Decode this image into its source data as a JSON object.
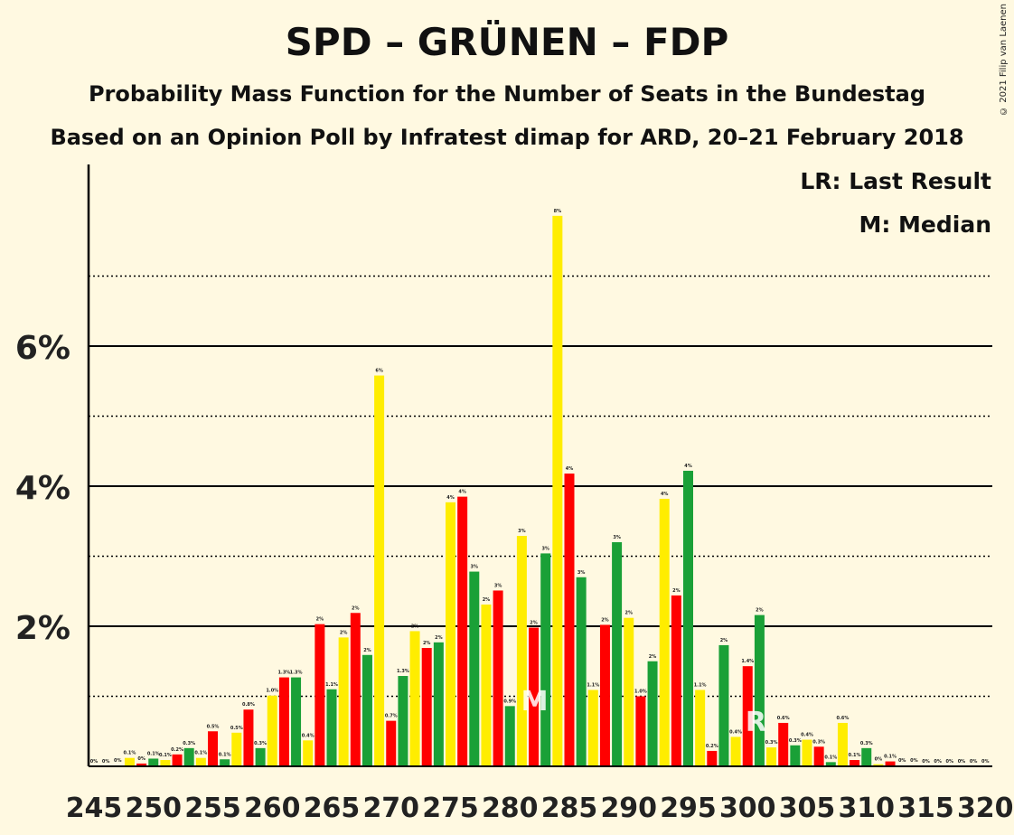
{
  "title": "SPD – GRÜNEN – FDP",
  "subtitle1": "Probability Mass Function for the Number of Seats in the Bundestag",
  "subtitle2": "Based on an Opinion Poll by Infratest dimap for ARD, 20–21 February 2018",
  "copyright": "© 2021 Filip van Laenen",
  "colors": {
    "yellow": "#FFED00",
    "red": "#FF0000",
    "green": "#1AA037",
    "background": "#FFF9E1",
    "axis": "#000000"
  },
  "chart_data": {
    "type": "bar",
    "title": "SPD – GRÜNEN – FDP",
    "legend": [
      "LR: Last Result",
      "M: Median"
    ],
    "legend_placement": "top-right",
    "ylim": [
      0,
      8.5
    ],
    "y_ticks": [
      2,
      4,
      6
    ],
    "y_tick_labels": [
      "2%",
      "4%",
      "6%"
    ],
    "y_dotted_lines": [
      1,
      3,
      5,
      7
    ],
    "x_tick_labels": [
      "245",
      "250",
      "255",
      "260",
      "265",
      "270",
      "275",
      "280",
      "285",
      "290",
      "295",
      "300",
      "305",
      "310",
      "315",
      "320"
    ],
    "median": 282,
    "last_result": 301,
    "median_marker": "M",
    "last_result_marker": "R",
    "bars": [
      {
        "x": 245,
        "value": 0.0,
        "label": "0%",
        "color": "red"
      },
      {
        "x": 246,
        "value": 0.0,
        "label": "0%",
        "color": "green"
      },
      {
        "x": 247,
        "value": 0.01,
        "label": "0%",
        "color": "yellow"
      },
      {
        "x": 248,
        "value": 0.12,
        "label": "0.1%",
        "color": "yellow"
      },
      {
        "x": 249,
        "value": 0.04,
        "label": "0%",
        "color": "red"
      },
      {
        "x": 250,
        "value": 0.11,
        "label": "0.1%",
        "color": "green"
      },
      {
        "x": 251,
        "value": 0.09,
        "label": "0.1%",
        "color": "yellow"
      },
      {
        "x": 252,
        "value": 0.17,
        "label": "0.2%",
        "color": "red"
      },
      {
        "x": 253,
        "value": 0.26,
        "label": "0.3%",
        "color": "green"
      },
      {
        "x": 254,
        "value": 0.12,
        "label": "0.1%",
        "color": "yellow"
      },
      {
        "x": 255,
        "value": 0.5,
        "label": "0.5%",
        "color": "red"
      },
      {
        "x": 256,
        "value": 0.1,
        "label": "0.1%",
        "color": "green"
      },
      {
        "x": 257,
        "value": 0.48,
        "label": "0.5%",
        "color": "yellow"
      },
      {
        "x": 258,
        "value": 0.81,
        "label": "0.8%",
        "color": "red"
      },
      {
        "x": 259,
        "value": 0.26,
        "label": "0.3%",
        "color": "green"
      },
      {
        "x": 260,
        "value": 1.01,
        "label": "1.0%",
        "color": "yellow"
      },
      {
        "x": 261,
        "value": 1.27,
        "label": "1.3%",
        "color": "red"
      },
      {
        "x": 262,
        "value": 1.27,
        "label": "1.3%",
        "color": "green"
      },
      {
        "x": 263,
        "value": 0.37,
        "label": "0.4%",
        "color": "yellow"
      },
      {
        "x": 264,
        "value": 2.03,
        "label": "2%",
        "color": "red"
      },
      {
        "x": 265,
        "value": 1.1,
        "label": "1.1%",
        "color": "green"
      },
      {
        "x": 266,
        "value": 1.84,
        "label": "2%",
        "color": "yellow"
      },
      {
        "x": 267,
        "value": 2.19,
        "label": "2%",
        "color": "red"
      },
      {
        "x": 268,
        "value": 1.59,
        "label": "2%",
        "color": "green"
      },
      {
        "x": 269,
        "value": 5.58,
        "label": "6%",
        "color": "yellow"
      },
      {
        "x": 270,
        "value": 0.65,
        "label": "0.7%",
        "color": "red"
      },
      {
        "x": 271,
        "value": 1.29,
        "label": "1.3%",
        "color": "green"
      },
      {
        "x": 272,
        "value": 1.93,
        "label": "2%",
        "color": "yellow"
      },
      {
        "x": 273,
        "value": 1.69,
        "label": "2%",
        "color": "red"
      },
      {
        "x": 274,
        "value": 1.77,
        "label": "2%",
        "color": "green"
      },
      {
        "x": 275,
        "value": 3.77,
        "label": "4%",
        "color": "yellow"
      },
      {
        "x": 276,
        "value": 3.85,
        "label": "4%",
        "color": "red"
      },
      {
        "x": 277,
        "value": 2.78,
        "label": "3%",
        "color": "green"
      },
      {
        "x": 278,
        "value": 2.31,
        "label": "2%",
        "color": "yellow"
      },
      {
        "x": 279,
        "value": 2.51,
        "label": "3%",
        "color": "red"
      },
      {
        "x": 280,
        "value": 0.86,
        "label": "0.9%",
        "color": "green"
      },
      {
        "x": 281,
        "value": 3.29,
        "label": "3%",
        "color": "yellow"
      },
      {
        "x": 282,
        "value": 1.98,
        "label": "2%",
        "color": "red"
      },
      {
        "x": 283,
        "value": 3.04,
        "label": "3%",
        "color": "green"
      },
      {
        "x": 284,
        "value": 7.86,
        "label": "8%",
        "color": "yellow"
      },
      {
        "x": 285,
        "value": 4.18,
        "label": "4%",
        "color": "red"
      },
      {
        "x": 286,
        "value": 2.7,
        "label": "3%",
        "color": "green"
      },
      {
        "x": 287,
        "value": 1.09,
        "label": "1.1%",
        "color": "yellow"
      },
      {
        "x": 288,
        "value": 2.02,
        "label": "2%",
        "color": "red"
      },
      {
        "x": 289,
        "value": 3.2,
        "label": "3%",
        "color": "green"
      },
      {
        "x": 290,
        "value": 2.12,
        "label": "2%",
        "color": "yellow"
      },
      {
        "x": 291,
        "value": 1.0,
        "label": "1.0%",
        "color": "red"
      },
      {
        "x": 292,
        "value": 1.5,
        "label": "2%",
        "color": "green"
      },
      {
        "x": 293,
        "value": 3.82,
        "label": "4%",
        "color": "yellow"
      },
      {
        "x": 294,
        "value": 2.44,
        "label": "2%",
        "color": "red"
      },
      {
        "x": 295,
        "value": 4.22,
        "label": "4%",
        "color": "green"
      },
      {
        "x": 296,
        "value": 1.09,
        "label": "1.1%",
        "color": "yellow"
      },
      {
        "x": 297,
        "value": 0.22,
        "label": "0.2%",
        "color": "red"
      },
      {
        "x": 298,
        "value": 1.73,
        "label": "2%",
        "color": "green"
      },
      {
        "x": 299,
        "value": 0.42,
        "label": "0.4%",
        "color": "yellow"
      },
      {
        "x": 300,
        "value": 1.43,
        "label": "1.4%",
        "color": "red"
      },
      {
        "x": 301,
        "value": 2.16,
        "label": "2%",
        "color": "green"
      },
      {
        "x": 302,
        "value": 0.27,
        "label": "0.3%",
        "color": "yellow"
      },
      {
        "x": 303,
        "value": 0.62,
        "label": "0.6%",
        "color": "red"
      },
      {
        "x": 304,
        "value": 0.3,
        "label": "0.3%",
        "color": "green"
      },
      {
        "x": 305,
        "value": 0.38,
        "label": "0.4%",
        "color": "yellow"
      },
      {
        "x": 306,
        "value": 0.28,
        "label": "0.3%",
        "color": "red"
      },
      {
        "x": 307,
        "value": 0.06,
        "label": "0.1%",
        "color": "green"
      },
      {
        "x": 308,
        "value": 0.62,
        "label": "0.6%",
        "color": "yellow"
      },
      {
        "x": 309,
        "value": 0.09,
        "label": "0.1%",
        "color": "red"
      },
      {
        "x": 310,
        "value": 0.26,
        "label": "0.3%",
        "color": "green"
      },
      {
        "x": 311,
        "value": 0.03,
        "label": "0%",
        "color": "yellow"
      },
      {
        "x": 312,
        "value": 0.07,
        "label": "0.1%",
        "color": "red"
      },
      {
        "x": 313,
        "value": 0.01,
        "label": "0%",
        "color": "green"
      },
      {
        "x": 314,
        "value": 0.01,
        "label": "0%",
        "color": "yellow"
      },
      {
        "x": 315,
        "value": 0.0,
        "label": "0%",
        "color": "red"
      },
      {
        "x": 316,
        "value": 0.0,
        "label": "0%",
        "color": "green"
      },
      {
        "x": 317,
        "value": 0.0,
        "label": "0%",
        "color": "yellow"
      },
      {
        "x": 318,
        "value": 0.0,
        "label": "0%",
        "color": "red"
      },
      {
        "x": 319,
        "value": 0.0,
        "label": "0%",
        "color": "green"
      },
      {
        "x": 320,
        "value": 0.0,
        "label": "0%",
        "color": "yellow"
      }
    ]
  }
}
